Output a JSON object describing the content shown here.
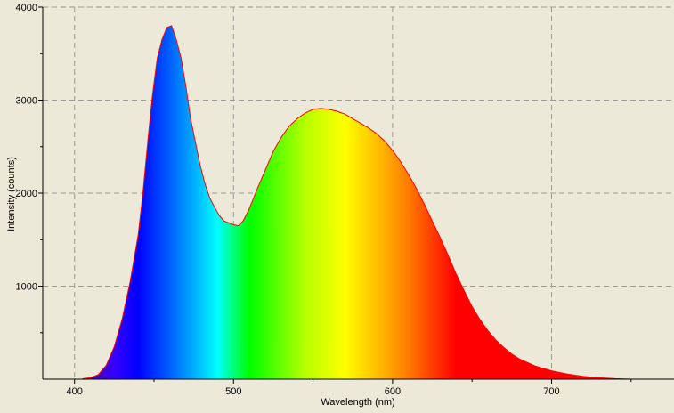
{
  "chart_data": {
    "type": "area",
    "title": "",
    "xlabel": "Wavelength (nm)",
    "ylabel": "Intensity (counts)",
    "xlim": [
      380,
      777
    ],
    "ylim": [
      0,
      4000
    ],
    "x_ticks": [
      400,
      500,
      600,
      700
    ],
    "y_ticks": [
      1000,
      2000,
      3000,
      4000
    ],
    "grid": true,
    "legend": "none",
    "fill": "visible-spectrum-gradient",
    "outline_color": "#ff0000",
    "series": [
      {
        "x": [
          405,
          410,
          415,
          420,
          425,
          430,
          435,
          440,
          443,
          446,
          449,
          452,
          455,
          458,
          461,
          464,
          467,
          470,
          473,
          476,
          479,
          482,
          485,
          488,
          491,
          494,
          497,
          500,
          503,
          506,
          509,
          512,
          515,
          520,
          525,
          530,
          535,
          540,
          545,
          550,
          555,
          560,
          565,
          570,
          575,
          580,
          585,
          590,
          595,
          600,
          605,
          610,
          615,
          620,
          625,
          630,
          635,
          640,
          645,
          650,
          655,
          660,
          665,
          670,
          675,
          680,
          690,
          700,
          710,
          720,
          730,
          740,
          750
        ],
        "y": [
          5,
          15,
          50,
          150,
          350,
          650,
          1050,
          1550,
          2000,
          2550,
          3050,
          3450,
          3650,
          3780,
          3800,
          3650,
          3450,
          3150,
          2800,
          2550,
          2300,
          2100,
          1950,
          1850,
          1760,
          1700,
          1680,
          1660,
          1650,
          1700,
          1800,
          1920,
          2050,
          2250,
          2450,
          2600,
          2720,
          2800,
          2860,
          2900,
          2910,
          2900,
          2880,
          2850,
          2800,
          2750,
          2700,
          2640,
          2560,
          2460,
          2340,
          2200,
          2050,
          1880,
          1700,
          1520,
          1330,
          1130,
          950,
          780,
          640,
          520,
          420,
          340,
          270,
          215,
          140,
          90,
          55,
          30,
          15,
          6,
          0
        ]
      }
    ]
  }
}
